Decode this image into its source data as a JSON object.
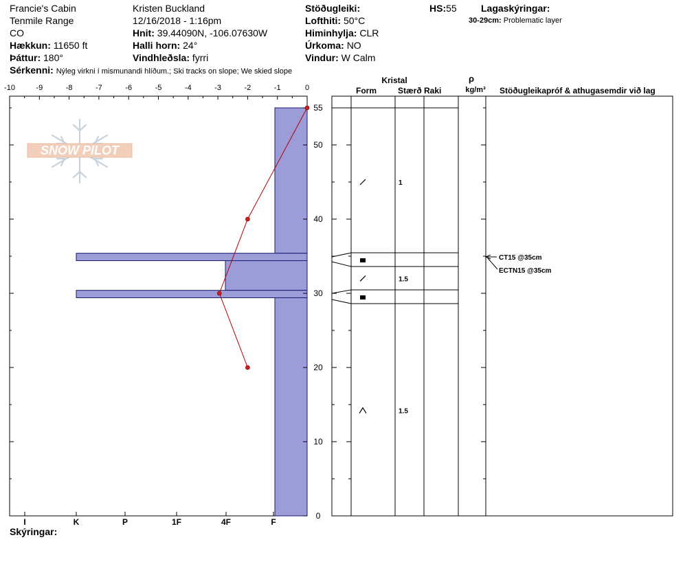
{
  "header": {
    "location": "Francie's Cabin",
    "range": "Tenmile Range",
    "state": "CO",
    "elevation_label": "Hækkun:",
    "elevation_value": "11650 ft",
    "aspect_label": "Þáttur:",
    "aspect_value": "180°",
    "observer": "Kristen Buckland",
    "datetime": "12/16/2018 - 1:16pm",
    "coords_label": "Hnit:",
    "coords_value": "39.44090N, -106.07630W",
    "slope_label": "Halli horn:",
    "slope_value": "24°",
    "wind_loading_label": "Vindhleðsla:",
    "wind_loading_value": "fyrri",
    "stability_label": "Stöðugleiki:",
    "air_temp_label": "Lofthiti:",
    "air_temp_value": "50°C",
    "sky_label": "Himinhylja:",
    "sky_value": "CLR",
    "precip_label": "Úrkoma:",
    "precip_value": "NO",
    "wind_label": "Vindur:",
    "wind_value": "W Calm",
    "hs_label": "HS:",
    "hs_value": "55",
    "layer_notes_label": "Lagaskýringar:",
    "layer_note_range": "30-29cm:",
    "layer_note_text": "Problematic layer",
    "features_label": "Sérkenni:",
    "features_value": "Nýleg virkni í mismunandi hlíðum.; Ski tracks on slope; We skied slope"
  },
  "footer": {
    "notes_label": "Skýringar:"
  },
  "logo": {
    "text": "SNOW PILOT"
  },
  "table": {
    "crystal_header": "Kristal",
    "form_header": "Form",
    "size_header": "Stærð",
    "moisture_header": "Raki",
    "density_symbol": "ρ",
    "density_unit": "kg/m³",
    "tests_header": "Stöðugleikapróf & athugasemdir við lag"
  },
  "chart_data": {
    "type": "snow-profile",
    "top_axis": {
      "ticks": [
        -10,
        -9,
        -8,
        -7,
        -6,
        -5,
        -4,
        -3,
        -2,
        -1,
        0
      ],
      "range": [
        -10,
        0
      ]
    },
    "depth_axis": {
      "ticks": [
        0,
        10,
        20,
        30,
        40,
        50,
        55
      ],
      "range": [
        0,
        55
      ]
    },
    "hardness_axis": {
      "labels": [
        "I",
        "K",
        "P",
        "1F",
        "4F",
        "F"
      ]
    },
    "temperature_profile": [
      {
        "depth": 55,
        "temp": 0
      },
      {
        "depth": 40,
        "temp": -2
      },
      {
        "depth": 30,
        "temp": -2.95
      },
      {
        "depth": 20,
        "temp": -2
      }
    ],
    "hardness_profile": [
      {
        "top": 55,
        "bottom": 35.4,
        "hardness": "F"
      },
      {
        "top": 35.4,
        "bottom": 34.4,
        "hardness": "K-"
      },
      {
        "top": 34.4,
        "bottom": 30.4,
        "hardness": "4F+"
      },
      {
        "top": 30.4,
        "bottom": 29.4,
        "hardness": "K-"
      },
      {
        "top": 29.4,
        "bottom": 0,
        "hardness": "F"
      }
    ],
    "layers": [
      {
        "top": 55,
        "bottom": 35.4,
        "form": "precipitation-particles",
        "size": "1",
        "label_depth": 45
      },
      {
        "top": 35.4,
        "bottom": 34.4,
        "form": "surface-hoar",
        "size": "",
        "label_depth": 34.8
      },
      {
        "top": 34.4,
        "bottom": 30.4,
        "form": "precipitation-particles",
        "size": "1.5",
        "label_depth": 32
      },
      {
        "top": 30.4,
        "bottom": 29.4,
        "form": "surface-hoar",
        "size": "",
        "label_depth": 29.5
      },
      {
        "top": 29.4,
        "bottom": 0,
        "form": "depth-hoar",
        "size": "1.5",
        "label_depth": 14.2
      }
    ],
    "tests": [
      {
        "label": "CT15 @35cm",
        "depth": 35
      },
      {
        "label": "ECTN15 @35cm",
        "depth": 35
      }
    ],
    "colors": {
      "hardness_fill": "#9c9cd8",
      "temperature": "#b00000",
      "point": "#cc1f1f"
    }
  }
}
